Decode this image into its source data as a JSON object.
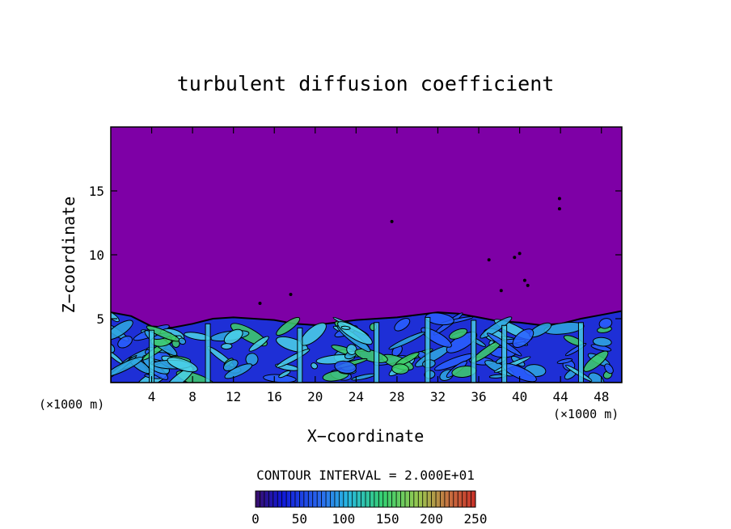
{
  "chart_data": {
    "type": "heatmap",
    "title": "turbulent diffusion coefficient",
    "xlabel": "X−coordinate",
    "ylabel": "Z−coordinate",
    "x_unit_left": "(×1000 m)",
    "x_unit_right": "(×1000 m)",
    "xlim": [
      0,
      50
    ],
    "ylim": [
      0,
      20
    ],
    "x_ticks": [
      "4",
      "8",
      "12",
      "16",
      "20",
      "24",
      "28",
      "32",
      "36",
      "40",
      "44",
      "48"
    ],
    "y_ticks": [
      "5",
      "10",
      "15"
    ],
    "contour_label": "CONTOUR INTERVAL = 2.000E+01",
    "contour_interval": 20,
    "colorbar": {
      "range": [
        0,
        250
      ],
      "tick_labels": [
        "0",
        "50",
        "100",
        "150",
        "200",
        "250"
      ],
      "tick_values": [
        0,
        50,
        100,
        150,
        200,
        250
      ]
    },
    "boundary_layer_top": [
      [
        0,
        5.5
      ],
      [
        2,
        5.2
      ],
      [
        4,
        4.4
      ],
      [
        6,
        4.3
      ],
      [
        8,
        4.6
      ],
      [
        10,
        5.0
      ],
      [
        12,
        5.1
      ],
      [
        14,
        5.0
      ],
      [
        16,
        4.9
      ],
      [
        18,
        4.6
      ],
      [
        20,
        4.5
      ],
      [
        22,
        4.7
      ],
      [
        24,
        4.9
      ],
      [
        26,
        5.0
      ],
      [
        28,
        5.1
      ],
      [
        30,
        5.3
      ],
      [
        32,
        5.5
      ],
      [
        34,
        5.4
      ],
      [
        36,
        5.1
      ],
      [
        38,
        4.8
      ],
      [
        40,
        4.7
      ],
      [
        42,
        4.5
      ],
      [
        44,
        4.6
      ],
      [
        46,
        5.0
      ],
      [
        48,
        5.3
      ],
      [
        50,
        5.6
      ]
    ],
    "background_color": "#7e00a6",
    "colors": [
      "#2a0a5e",
      "#1e2fd6",
      "#2a60ff",
      "#30a8e0",
      "#4bd2e8",
      "#3fcf6a"
    ]
  }
}
